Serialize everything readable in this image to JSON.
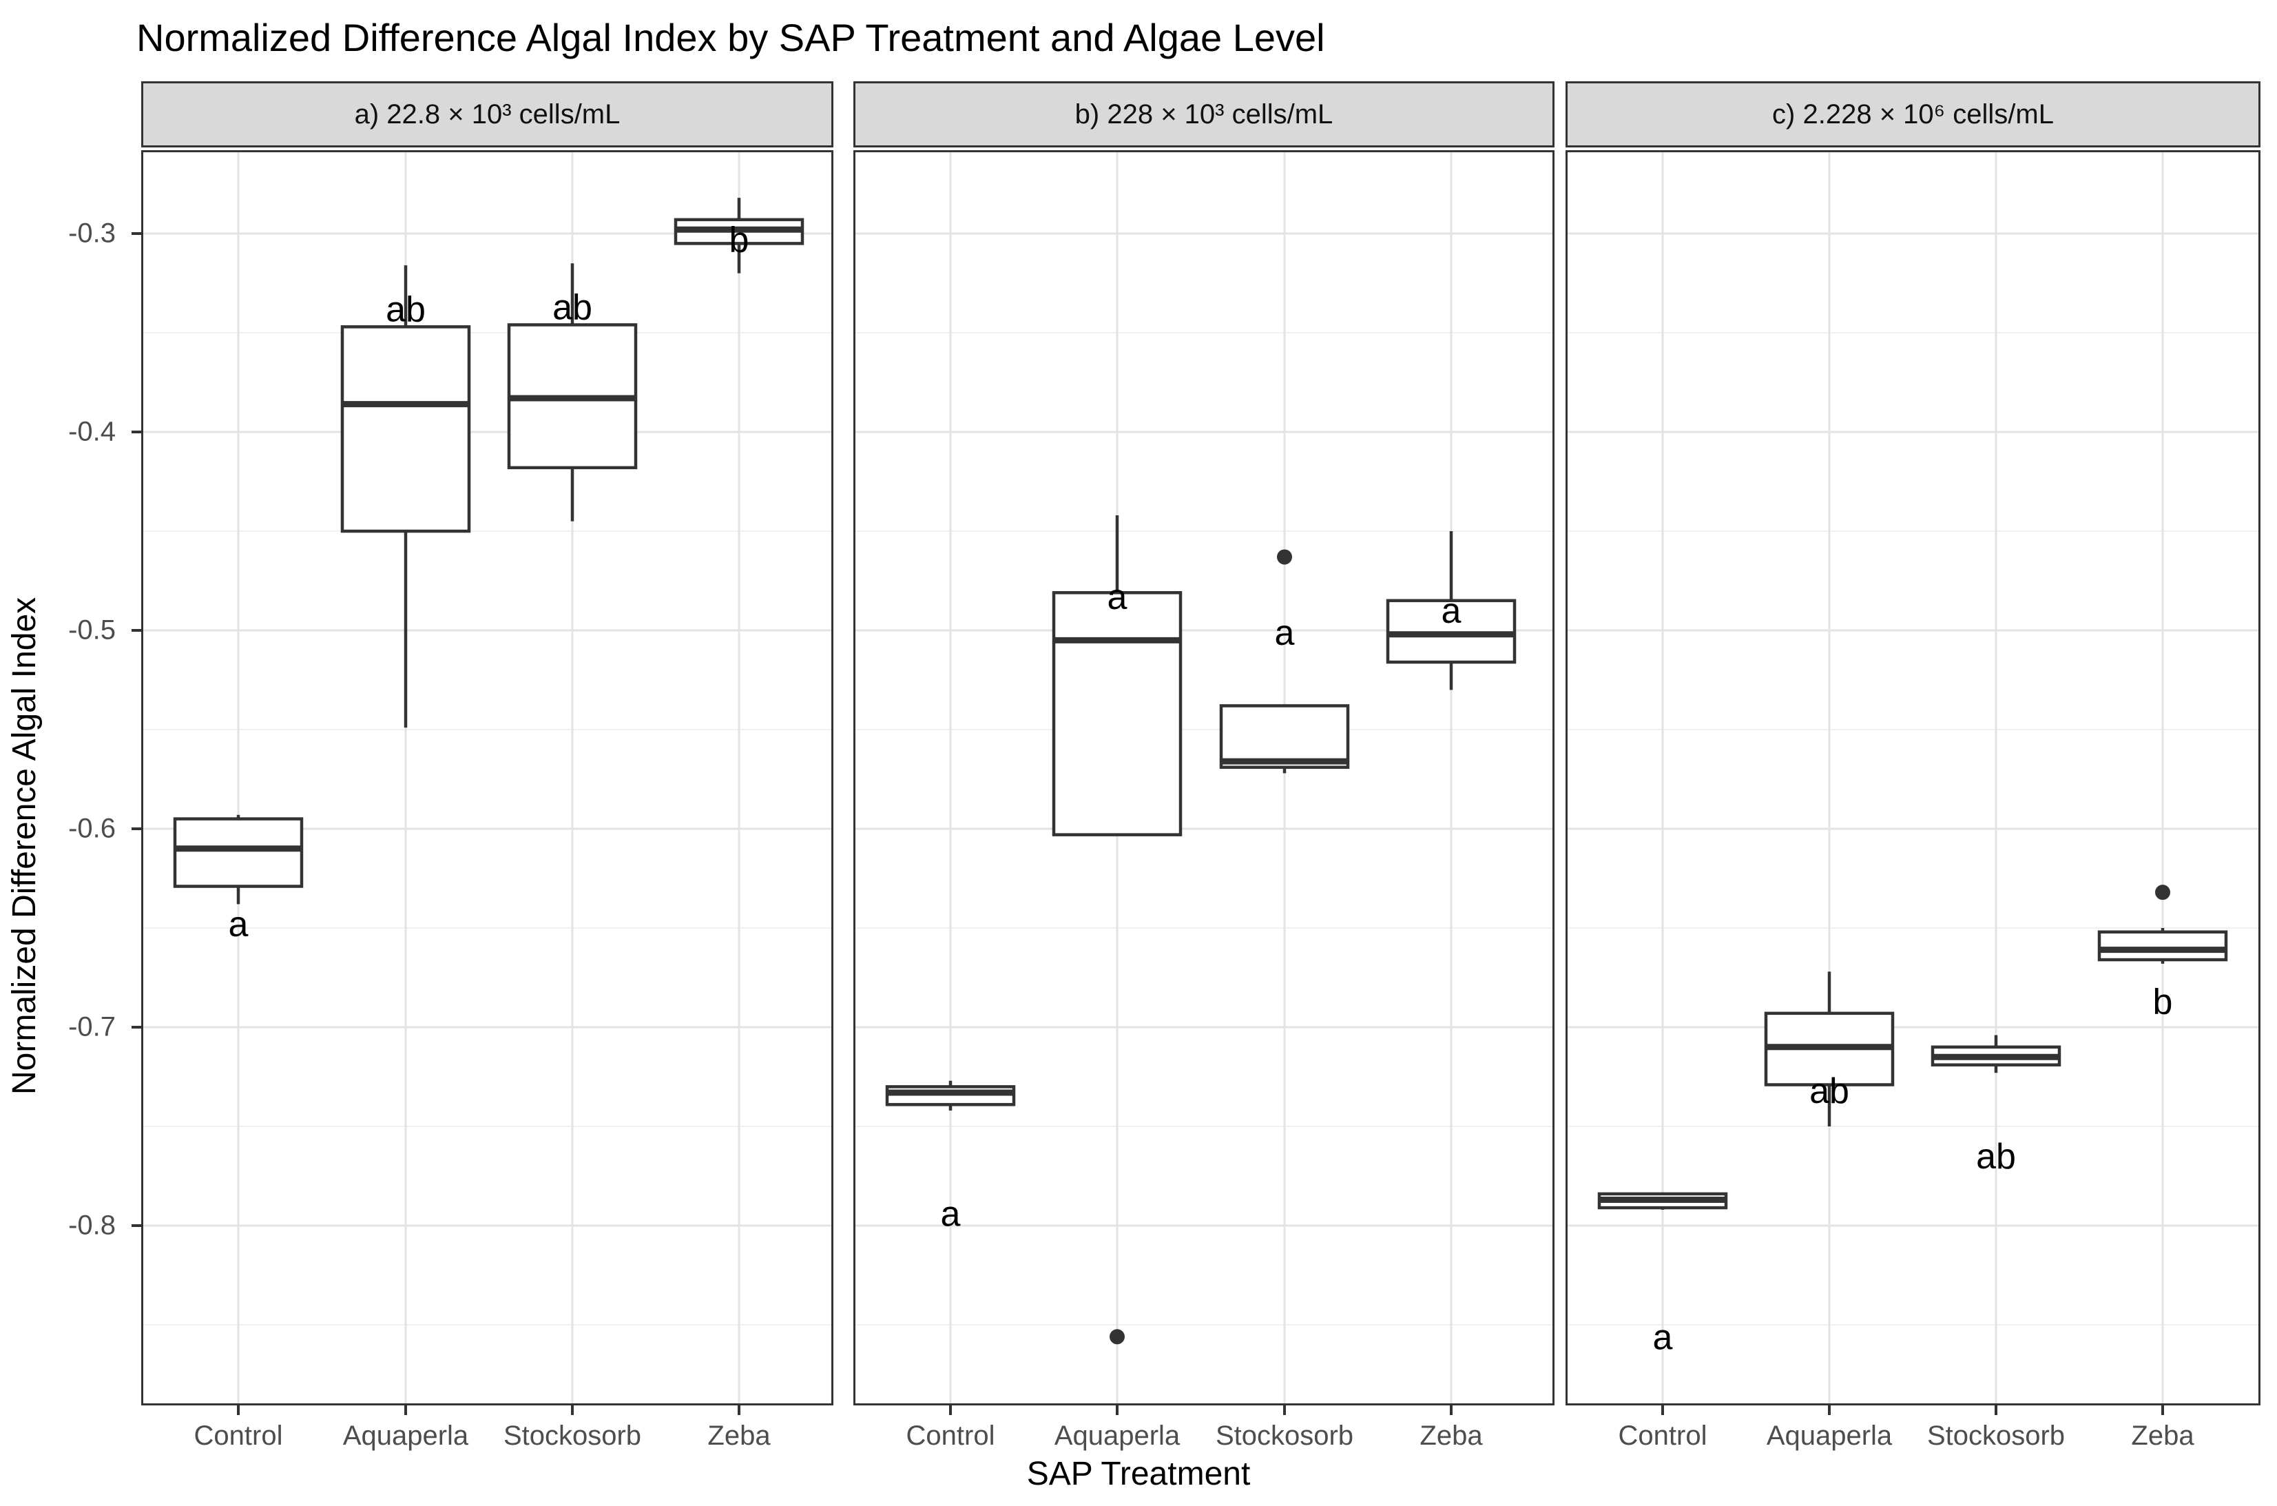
{
  "title": "Normalized Difference Algal Index by SAP Treatment and Algae Level",
  "x_axis_title": "SAP Treatment",
  "y_axis_title": "Normalized Difference Algal Index",
  "colors": {
    "strip_fill": "#d9d9d9",
    "panel_border": "#333333",
    "box_stroke": "#333333",
    "grid_major": "#e3e3e3",
    "grid_minor": "#f0f0f0",
    "axis_text": "#4d4d4d",
    "outlier": "#333333"
  },
  "chart_data": {
    "type": "boxplot",
    "title": "Normalized Difference Algal Index by SAP Treatment and Algae Level",
    "xlabel": "SAP Treatment",
    "ylabel": "Normalized Difference Algal Index",
    "categories": [
      "Control",
      "Aquaperla",
      "Stockosorb",
      "Zeba"
    ],
    "y_tick_labels": [
      "-0.3",
      "-0.4",
      "-0.5",
      "-0.6",
      "-0.7",
      "-0.8"
    ],
    "y_ticks": [
      -0.3,
      -0.4,
      -0.5,
      -0.6,
      -0.7,
      -0.8
    ],
    "y_minor_ticks": [
      -0.35,
      -0.45,
      -0.55,
      -0.65,
      -0.75,
      -0.85
    ],
    "ylim": [
      -0.89,
      -0.258
    ],
    "grid": true,
    "legend": "none",
    "panels": [
      {
        "facet_label": "a) 22.8 × 10³ cells/mL",
        "boxes": [
          {
            "treatment": "Control",
            "whisker_low": -0.638,
            "q1": -0.629,
            "median": -0.61,
            "q3": -0.595,
            "whisker_high": -0.593,
            "outliers": [],
            "sig_label": "a",
            "sig_label_y": -0.648
          },
          {
            "treatment": "Aquaperla",
            "whisker_low": -0.549,
            "q1": -0.45,
            "median": -0.386,
            "q3": -0.347,
            "whisker_high": -0.316,
            "outliers": [],
            "sig_label": "ab",
            "sig_label_y": -0.338
          },
          {
            "treatment": "Stockosorb",
            "whisker_low": -0.445,
            "q1": -0.418,
            "median": -0.383,
            "q3": -0.346,
            "whisker_high": -0.315,
            "outliers": [],
            "sig_label": "ab",
            "sig_label_y": -0.337
          },
          {
            "treatment": "Zeba",
            "whisker_low": -0.32,
            "q1": -0.305,
            "median": -0.298,
            "q3": -0.293,
            "whisker_high": -0.282,
            "outliers": [],
            "sig_label": "b",
            "sig_label_y": -0.303
          }
        ]
      },
      {
        "facet_label": "b) 228 × 10³ cells/mL",
        "boxes": [
          {
            "treatment": "Control",
            "whisker_low": -0.742,
            "q1": -0.739,
            "median": -0.733,
            "q3": -0.73,
            "whisker_high": -0.727,
            "outliers": [],
            "sig_label": "a",
            "sig_label_y": -0.794
          },
          {
            "treatment": "Aquaperla",
            "whisker_low": -0.603,
            "q1": -0.603,
            "median": -0.505,
            "q3": -0.481,
            "whisker_high": -0.442,
            "outliers": [
              -0.856
            ],
            "sig_label": "a",
            "sig_label_y": -0.483
          },
          {
            "treatment": "Stockosorb",
            "whisker_low": -0.572,
            "q1": -0.569,
            "median": -0.566,
            "q3": -0.538,
            "whisker_high": -0.538,
            "outliers": [
              -0.463
            ],
            "sig_label": "a",
            "sig_label_y": -0.501
          },
          {
            "treatment": "Zeba",
            "whisker_low": -0.53,
            "q1": -0.516,
            "median": -0.502,
            "q3": -0.485,
            "whisker_high": -0.45,
            "outliers": [],
            "sig_label": "a",
            "sig_label_y": -0.49
          }
        ]
      },
      {
        "facet_label": "c) 2.228 × 10⁶ cells/mL",
        "boxes": [
          {
            "treatment": "Control",
            "whisker_low": -0.792,
            "q1": -0.791,
            "median": -0.787,
            "q3": -0.784,
            "whisker_high": -0.784,
            "outliers": [],
            "sig_label": "a",
            "sig_label_y": -0.856
          },
          {
            "treatment": "Aquaperla",
            "whisker_low": -0.75,
            "q1": -0.729,
            "median": -0.71,
            "q3": -0.693,
            "whisker_high": -0.672,
            "outliers": [],
            "sig_label": "ab",
            "sig_label_y": -0.732
          },
          {
            "treatment": "Stockosorb",
            "whisker_low": -0.723,
            "q1": -0.719,
            "median": -0.715,
            "q3": -0.71,
            "whisker_high": -0.704,
            "outliers": [],
            "sig_label": "ab",
            "sig_label_y": -0.765
          },
          {
            "treatment": "Zeba",
            "whisker_low": -0.668,
            "q1": -0.666,
            "median": -0.661,
            "q3": -0.652,
            "whisker_high": -0.65,
            "outliers": [
              -0.632
            ],
            "sig_label": "b",
            "sig_label_y": -0.687
          }
        ]
      }
    ]
  }
}
